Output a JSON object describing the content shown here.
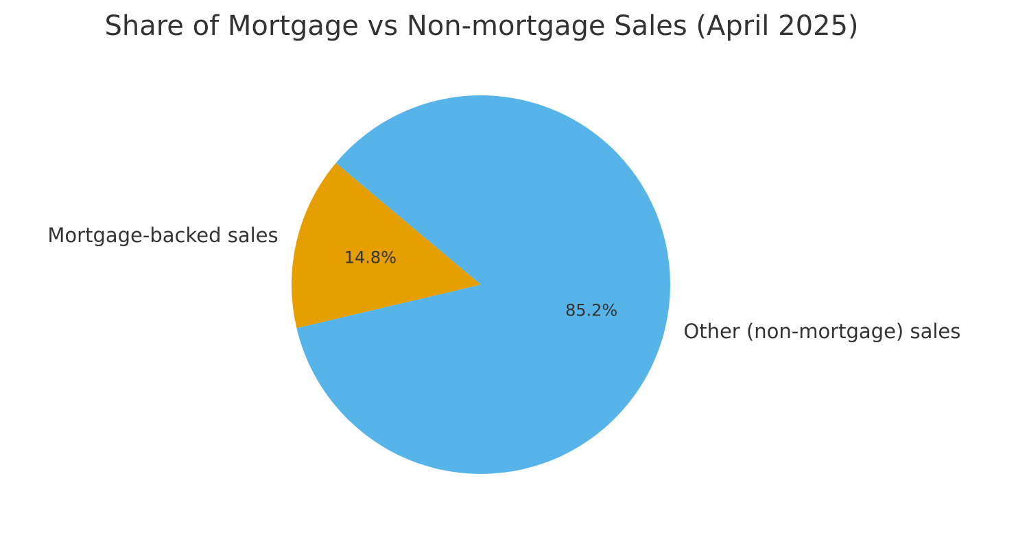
{
  "chart_data": {
    "type": "pie",
    "title": "Share of Mortgage vs Non-mortgage Sales (April 2025)",
    "categories": [
      "Mortgage-backed sales",
      "Other (non-mortgage) sales"
    ],
    "values": [
      14.8,
      85.2
    ],
    "value_labels": [
      "14.8%",
      "85.2%"
    ],
    "colors": [
      "#E69F00",
      "#56B4E9"
    ]
  }
}
